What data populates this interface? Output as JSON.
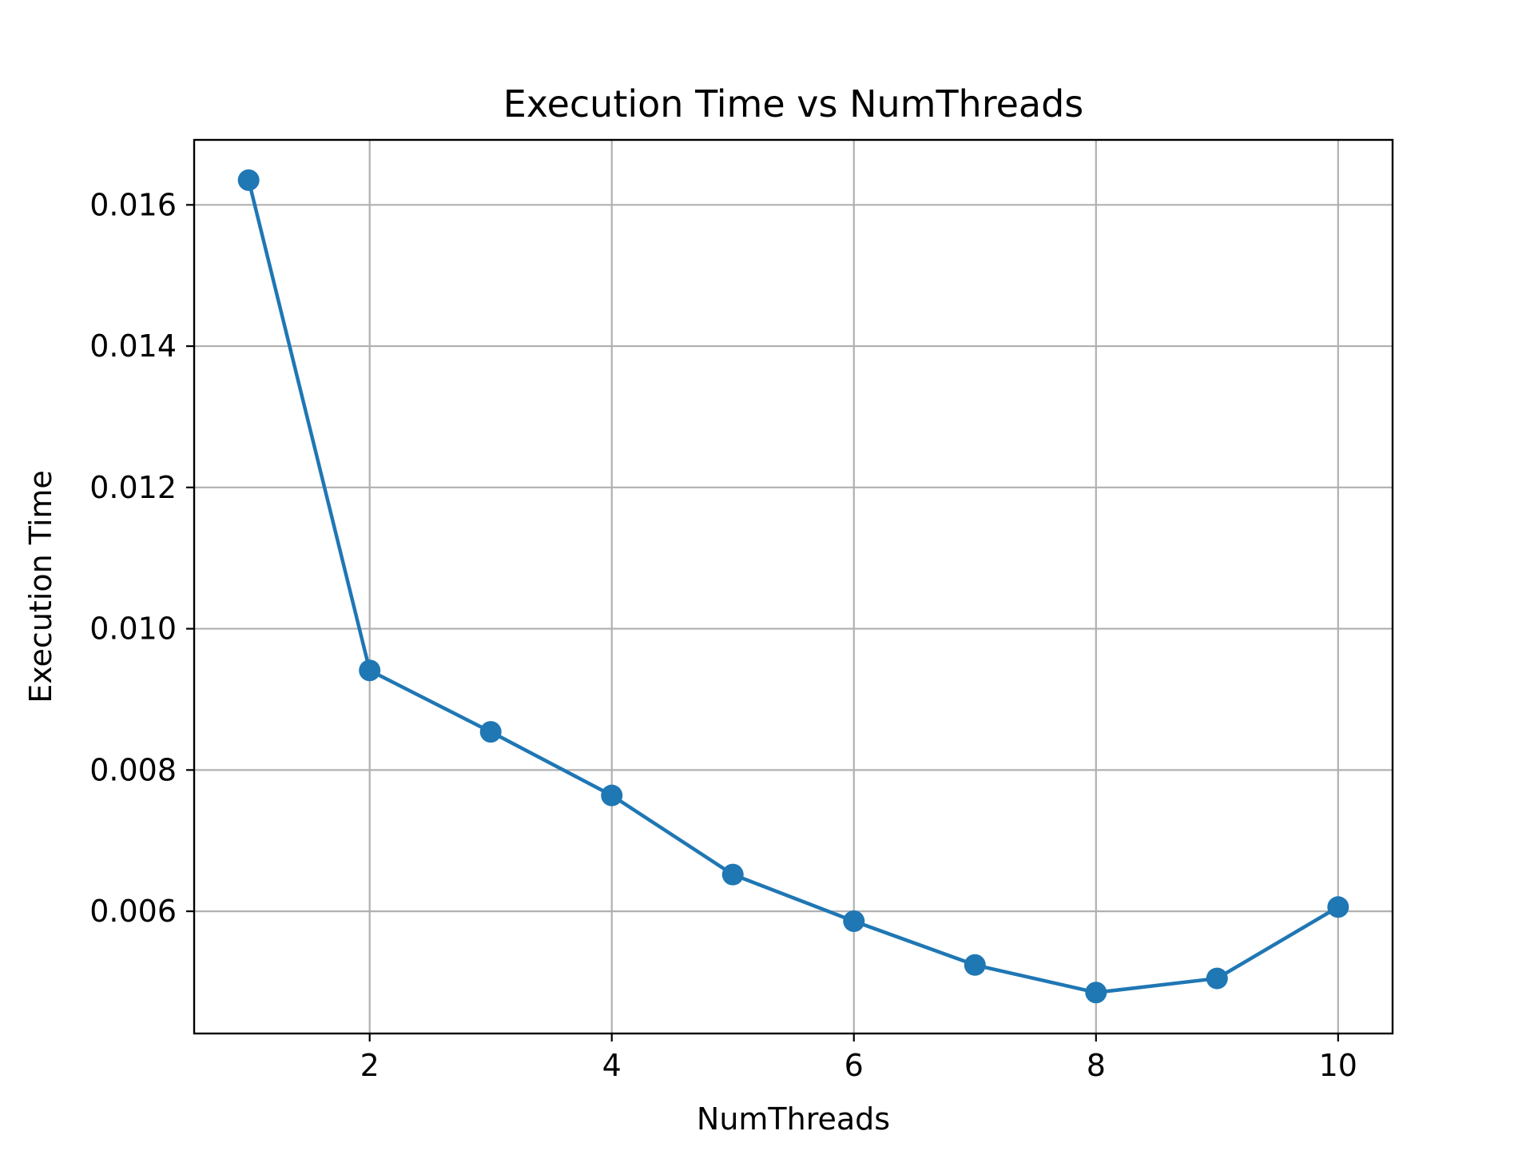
{
  "chart_data": {
    "type": "line",
    "title": "Execution Time vs NumThreads",
    "xlabel": "NumThreads",
    "ylabel": "Execution Time",
    "x": [
      1,
      2,
      3,
      4,
      5,
      6,
      7,
      8,
      9,
      10
    ],
    "series": [
      {
        "values": [
          0.01635,
          0.00941,
          0.00854,
          0.00764,
          0.00652,
          0.00586,
          0.00524,
          0.00485,
          0.00505,
          0.00606
        ],
        "color": "#1f77b4",
        "marker": "circle"
      }
    ],
    "xlim": [
      0.55,
      10.45
    ],
    "ylim": [
      0.00427,
      0.01692
    ],
    "xticks": [
      2,
      4,
      6,
      8,
      10
    ],
    "xtick_labels": [
      "2",
      "4",
      "6",
      "8",
      "10"
    ],
    "yticks": [
      0.006,
      0.008,
      0.01,
      0.012,
      0.014,
      0.016
    ],
    "ytick_labels": [
      "0.006",
      "0.008",
      "0.010",
      "0.012",
      "0.014",
      "0.016"
    ],
    "grid": true,
    "grid_color": "#b0b0b0",
    "axis_color": "#000000"
  }
}
